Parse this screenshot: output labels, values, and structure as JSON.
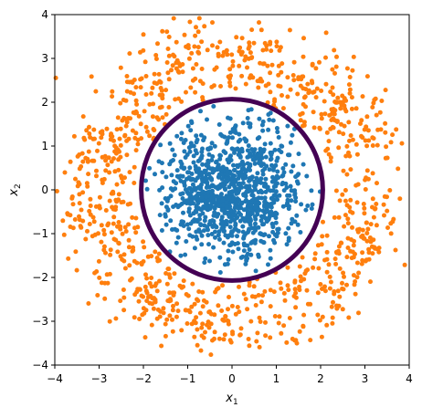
{
  "chart_data": {
    "type": "scatter",
    "title": "",
    "xlabel": {
      "base": "x",
      "sub": "1"
    },
    "ylabel": {
      "base": "x",
      "sub": "2"
    },
    "xlim": [
      -4,
      4
    ],
    "ylim": [
      -4,
      4
    ],
    "xticks": [
      -4,
      -3,
      -2,
      -1,
      0,
      1,
      2,
      3,
      4
    ],
    "yticks": [
      -4,
      -3,
      -2,
      -1,
      0,
      1,
      2,
      3,
      4
    ],
    "xtick_labels": [
      "−4",
      "−3",
      "−2",
      "−1",
      "0",
      "1",
      "2",
      "3",
      "4"
    ],
    "ytick_labels": [
      "−4",
      "−3",
      "−2",
      "−1",
      "0",
      "1",
      "2",
      "3",
      "4"
    ],
    "grid": false,
    "series": [
      {
        "color": "#1f77b4",
        "distribution": "gaussian",
        "center": [
          0,
          0
        ],
        "std": 0.75,
        "max_radius": 2.0,
        "count": 1000,
        "seed": 7
      },
      {
        "color": "#ff7f0e",
        "distribution": "ring",
        "center": [
          0,
          0
        ],
        "radius_mean": 3.0,
        "radius_std": 0.5,
        "min_radius": 2.1,
        "count": 1000,
        "seed": 11
      }
    ],
    "boundary": {
      "shape": "circle",
      "center": [
        0,
        0
      ],
      "radius": 2.05,
      "color": "#440154"
    }
  }
}
